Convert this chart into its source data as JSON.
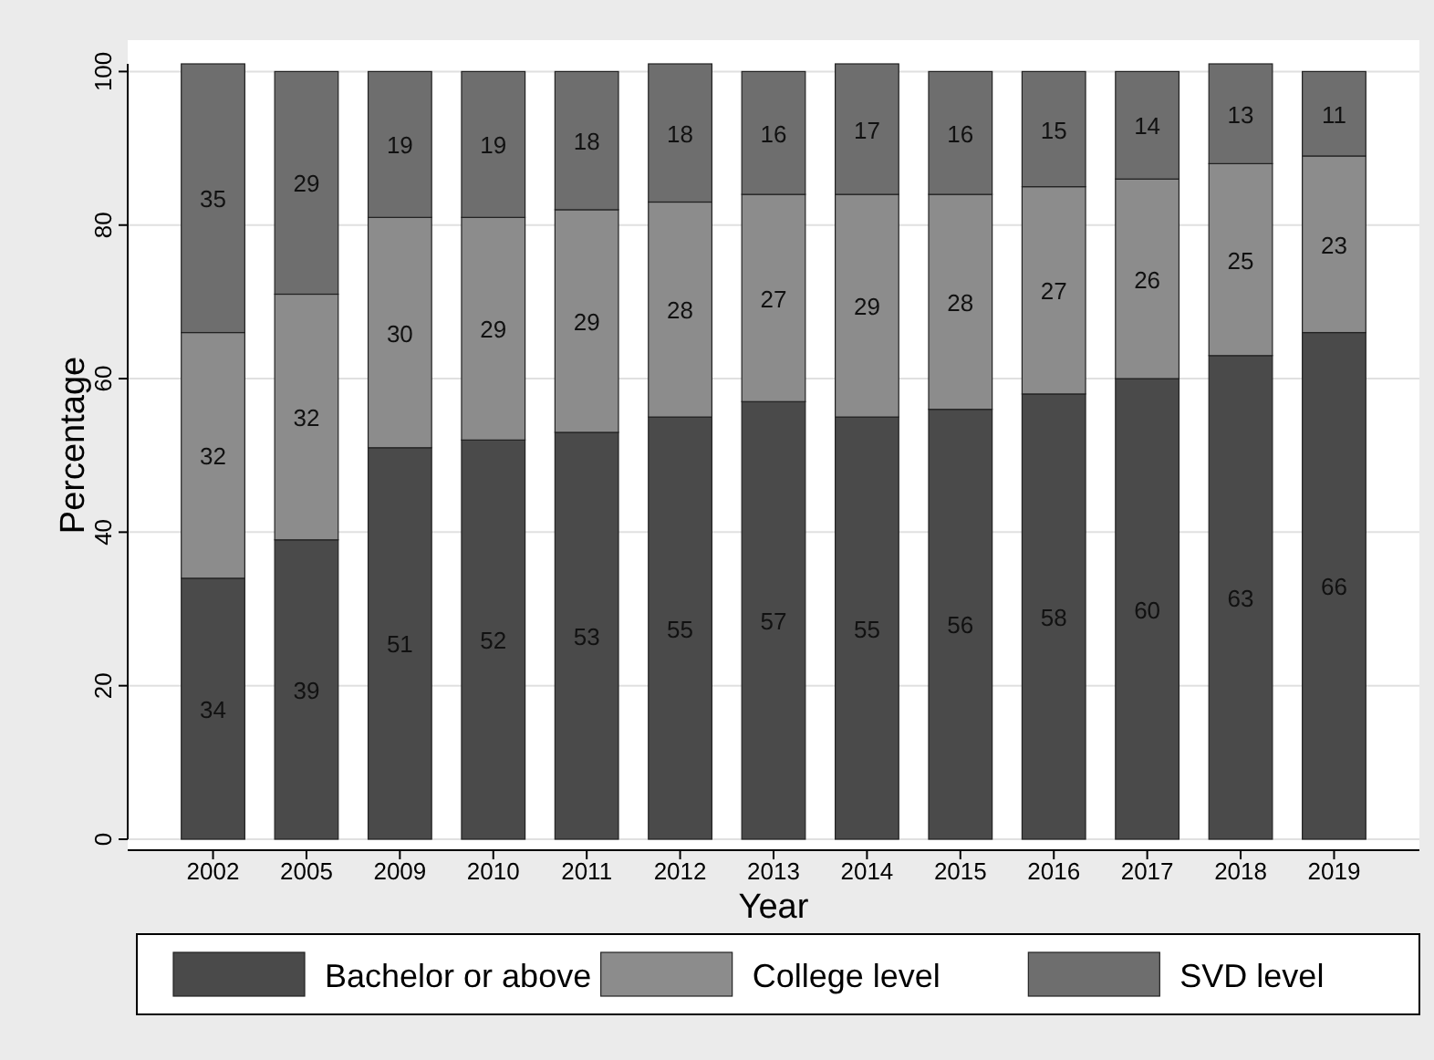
{
  "chart_data": {
    "type": "bar",
    "stacked": true,
    "xlabel": "Year",
    "ylabel": "Percentage",
    "categories": [
      "2002",
      "2005",
      "2009",
      "2010",
      "2011",
      "2012",
      "2013",
      "2014",
      "2015",
      "2016",
      "2017",
      "2018",
      "2019"
    ],
    "series": [
      {
        "name": "Bachelor or above",
        "color": "#4a4a4a",
        "values": [
          34,
          39,
          51,
          52,
          53,
          55,
          57,
          55,
          56,
          58,
          60,
          63,
          66
        ]
      },
      {
        "name": "College level",
        "color": "#8c8c8c",
        "values": [
          32,
          32,
          30,
          29,
          29,
          28,
          27,
          29,
          28,
          27,
          26,
          25,
          23
        ]
      },
      {
        "name": "SVD level",
        "color": "#6e6e6e",
        "values": [
          35,
          29,
          19,
          19,
          18,
          18,
          16,
          17,
          16,
          15,
          14,
          13,
          11
        ]
      }
    ],
    "ylim": [
      0,
      101
    ],
    "yticks": [
      0,
      20,
      40,
      60,
      80,
      100
    ],
    "grid": "y",
    "data_labels": true,
    "legend": "bottom"
  }
}
